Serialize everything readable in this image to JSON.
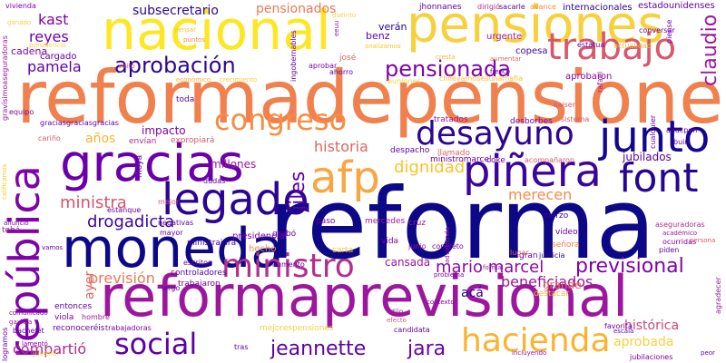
{
  "words": [
    {
      "text": "reforma",
      "color": "#0d0887"
    },
    {
      "text": "reformadepensiones",
      "color": "#f0804d"
    },
    {
      "text": "nacional",
      "color": "#fde725"
    },
    {
      "text": "pensiones",
      "color": "#f7d13d"
    },
    {
      "text": "reformaprevisional",
      "color": "#9c179e"
    },
    {
      "text": "moneda",
      "color": "#0d0887"
    },
    {
      "text": "gracias",
      "color": "#6a00a8"
    },
    {
      "text": "trabajo",
      "color": "#d8576b"
    },
    {
      "text": "república",
      "color": "#7e03a8"
    },
    {
      "text": "piñera",
      "color": "#3b049a"
    },
    {
      "text": "legado",
      "color": "#2a0593"
    },
    {
      "text": "junto",
      "color": "#13068f"
    },
    {
      "text": "afp",
      "color": "#f9a642"
    },
    {
      "text": "font",
      "color": "#240691"
    },
    {
      "text": "desayuno",
      "color": "#2c0594"
    },
    {
      "text": "social",
      "color": "#5c01a6"
    },
    {
      "text": "hacienda",
      "color": "#fbb32f"
    },
    {
      "text": "ministro",
      "color": "#b2308b"
    },
    {
      "text": "congreso",
      "color": "#f68d45"
    },
    {
      "text": "aprobación",
      "color": "#2c0594"
    },
    {
      "text": "pensionada",
      "color": "#7e03a8"
    },
    {
      "text": "claudio",
      "color": "#9c179e"
    },
    {
      "text": "jeannette",
      "color": "#5c01a6"
    },
    {
      "text": "jara",
      "color": "#6a00a8"
    },
    {
      "text": "previsional",
      "color": "#7e03a8"
    },
    {
      "text": "mario marcel",
      "color": "#8b0aa5"
    },
    {
      "text": "beneficiados",
      "color": "#9c179e"
    },
    {
      "text": "jiles",
      "color": "#5c01a6"
    },
    {
      "text": "historia",
      "color": "#e16462"
    },
    {
      "text": "dignidad",
      "color": "#fdc328"
    },
    {
      "text": "merecen",
      "color": "#f58c46"
    },
    {
      "text": "drogadicta",
      "color": "#3b049a"
    },
    {
      "text": "ministra",
      "color": "#d5546e"
    },
    {
      "text": "previsión",
      "color": "#ec7853"
    },
    {
      "text": "pamela",
      "color": "#5c01a6"
    },
    {
      "text": "reyes",
      "color": "#6a00a8"
    },
    {
      "text": "kast",
      "color": "#7e03a8"
    },
    {
      "text": "subsecretario",
      "color": "#2c0594"
    },
    {
      "text": "pensionados",
      "color": "#ec7853"
    },
    {
      "text": "compartió",
      "color": "#b12a90"
    },
    {
      "text": "aprobada",
      "color": "#f7d13d"
    },
    {
      "text": "histórica",
      "color": "#cc4778"
    },
    {
      "text": "años",
      "color": "#fdb42f"
    },
    {
      "text": "ayer",
      "color": "#e16462"
    },
    {
      "text": "acá",
      "color": "#2c0594"
    },
    {
      "text": "impacto",
      "color": "#7e03a8"
    },
    {
      "text": "millones",
      "color": "#9c179e"
    },
    {
      "text": "cansada",
      "color": "#9c179e"
    },
    {
      "text": "grande",
      "color": "#e56b5d"
    },
    {
      "text": "jubilados",
      "color": "#5c01a6"
    },
    {
      "text": "verán",
      "color": "#2c0594"
    },
    {
      "text": "benz",
      "color": "#5c01a6"
    },
    {
      "text": "copesa",
      "color": "#3b049a"
    },
    {
      "text": "urgente",
      "color": "#9c179e"
    },
    {
      "text": "cadena",
      "color": "#7e03a8"
    },
    {
      "text": "cargado",
      "color": "#6a00a8"
    },
    {
      "text": "aprobaron",
      "color": "#8b0aa5"
    },
    {
      "text": "internacionales",
      "color": "#2c0594"
    },
    {
      "text": "estadounidenses",
      "color": "#5c01a6"
    },
    {
      "text": "jhonnanes",
      "color": "#5c01a6"
    },
    {
      "text": "dirigió",
      "color": "#b12a90"
    },
    {
      "text": "sacarle",
      "color": "#5c01a6"
    },
    {
      "text": "avance",
      "color": "#f58c46"
    },
    {
      "text": "conversar",
      "color": "#5c01a6"
    },
    {
      "text": "estatua",
      "color": "#6a00a8"
    },
    {
      "text": "actualidad",
      "color": "#fdb42f"
    },
    {
      "text": "ministromarcel",
      "color": "#6a00a8"
    },
    {
      "text": "chilevamosesunamafia",
      "color": "#fdc328"
    },
    {
      "text": "reuniones",
      "color": "#f7d13d"
    },
    {
      "text": "despacho",
      "color": "#5c01a6"
    },
    {
      "text": "llamado",
      "color": "#e16462"
    },
    {
      "text": "tratados",
      "color": "#9c179e"
    },
    {
      "text": "desborbes",
      "color": "#7e03a8"
    },
    {
      "text": "expropiará",
      "color": "#d8576b"
    },
    {
      "text": "envían",
      "color": "#b12a90"
    },
    {
      "text": "cariño",
      "color": "#d8576b"
    },
    {
      "text": "gravísimoaseguradoras",
      "color": "#9c179e"
    },
    {
      "text": "graciasgraciasgracias",
      "color": "#5c01a6"
    },
    {
      "text": "equipo",
      "color": "#7e03a8"
    },
    {
      "text": "bachelet",
      "color": "#5c01a6"
    },
    {
      "text": "vivienda",
      "color": "#7e03a8"
    },
    {
      "text": "puntos",
      "color": "#f58c46"
    },
    {
      "text": "crecimiento",
      "color": "#f7d13d"
    },
    {
      "text": "económico",
      "color": "#fdb42f"
    },
    {
      "text": "ingobernables",
      "color": "#6a00a8"
    },
    {
      "text": "aprobar",
      "color": "#7e03a8"
    },
    {
      "text": "josé",
      "color": "#e16462"
    },
    {
      "text": "ahorro",
      "color": "#5c01a6"
    },
    {
      "text": "toda",
      "color": "#5c01a6"
    },
    {
      "text": "dudas",
      "color": "#5c01a6"
    },
    {
      "text": "estanque",
      "color": "#6a00a8"
    },
    {
      "text": "ministrajara",
      "color": "#3b049a"
    },
    {
      "text": "presidencial",
      "color": "#7e03a8"
    },
    {
      "text": "grabó",
      "color": "#5c01a6"
    },
    {
      "text": "paso",
      "color": "#6a00a8"
    },
    {
      "text": "mercedes",
      "color": "#9c179e"
    },
    {
      "text": "cruz",
      "color": "#9c179e"
    },
    {
      "text": "problema",
      "color": "#7e03a8"
    },
    {
      "text": "marzo",
      "color": "#3b049a"
    },
    {
      "text": "acompañaron",
      "color": "#d8576b"
    },
    {
      "text": "coke",
      "color": "#6a00a8"
    },
    {
      "text": "buin",
      "color": "#6a00a8"
    },
    {
      "text": "anacpen",
      "color": "#5c01a6"
    },
    {
      "text": "aseguradoras",
      "color": "#b12a90"
    },
    {
      "text": "académico",
      "color": "#9c179e"
    },
    {
      "text": "ocurridas",
      "color": "#7e03a8"
    },
    {
      "text": "piden",
      "color": "#5c01a6"
    },
    {
      "text": "persona",
      "color": "#d8576b"
    },
    {
      "text": "gran",
      "color": "#5c01a6"
    },
    {
      "text": "justicia",
      "color": "#2c0594"
    },
    {
      "text": "concreto",
      "color": "#7e03a8"
    },
    {
      "text": "advirtiendo",
      "color": "#9c179e"
    },
    {
      "text": "video",
      "color": "#6a00a8"
    },
    {
      "text": "señora",
      "color": "#f0804d"
    },
    {
      "text": "vida",
      "color": "#7e03a8"
    },
    {
      "text": "junio",
      "color": "#9c179e"
    },
    {
      "text": "carta",
      "color": "#fdc328"
    },
    {
      "text": "contexto",
      "color": "#7e03a8"
    },
    {
      "text": "controladores",
      "color": "#5c01a6"
    },
    {
      "text": "trabajaron",
      "color": "#6a00a8"
    },
    {
      "text": "mejorespensiones",
      "color": "#f7d13d"
    },
    {
      "text": "candidata",
      "color": "#5c01a6"
    },
    {
      "text": "entonces",
      "color": "#5c01a6"
    },
    {
      "text": "viola",
      "color": "#7e03a8"
    },
    {
      "text": "reconoceréis",
      "color": "#6a00a8"
    },
    {
      "text": "trabajadoras",
      "color": "#7e03a8"
    },
    {
      "text": "hombre",
      "color": "#9c179e"
    },
    {
      "text": "favorita",
      "color": "#6a00a8"
    },
    {
      "text": "jubilaciones",
      "color": "#7e03a8"
    },
    {
      "text": "incluyendo",
      "color": "#9c179e"
    },
    {
      "text": "efecto",
      "color": "#d8576b"
    },
    {
      "text": "dijo",
      "color": "#9c179e"
    },
    {
      "text": "tras",
      "color": "#5c01a6"
    },
    {
      "text": "juvenil",
      "color": "#f7d13d"
    },
    {
      "text": "lamentó",
      "color": "#7e03a8"
    },
    {
      "text": "logramos",
      "color": "#6a00a8"
    },
    {
      "text": "comunicado",
      "color": "#7e03a8"
    },
    {
      "text": "gaxiola",
      "color": "#9c179e"
    },
    {
      "text": "mejor",
      "color": "#d8576b"
    },
    {
      "text": "mayor",
      "color": "#6a00a8"
    },
    {
      "text": "negativas",
      "color": "#5c01a6"
    },
    {
      "text": "escritor",
      "color": "#7e03a8"
    },
    {
      "text": "hecho",
      "color": "#f58c46"
    },
    {
      "text": "aumento",
      "color": "#6a00a8"
    },
    {
      "text": "largo",
      "color": "#5c01a6"
    },
    {
      "text": "moya",
      "color": "#6a00a8"
    },
    {
      "text": "tohá",
      "color": "#9c179e"
    },
    {
      "text": "anuncio",
      "color": "#7e03a8"
    },
    {
      "text": "vamos",
      "color": "#6a00a8"
    },
    {
      "text": "destacar",
      "color": "#fdb42f"
    },
    {
      "text": "lugar",
      "color": "#e16462"
    },
    {
      "text": "kaiser",
      "color": "#d8576b"
    },
    {
      "text": "rafael",
      "color": "#9c179e"
    },
    {
      "text": "cualquier",
      "color": "#6a00a8"
    },
    {
      "text": "piense",
      "color": "#7e03a8"
    },
    {
      "text": "sistema",
      "color": "#d8576b"
    },
    {
      "text": "escala",
      "color": "#6a00a8"
    },
    {
      "text": "agradecer",
      "color": "#9c179e"
    },
    {
      "text": "peor",
      "color": "#5c01a6"
    },
    {
      "text": "distinto",
      "color": "#f7d13d"
    },
    {
      "text": "eeuu",
      "color": "#9c179e"
    },
    {
      "text": "cresta",
      "color": "#fdb42f"
    },
    {
      "text": "aumentar",
      "color": "#e16462"
    },
    {
      "text": "presidencia",
      "color": "#f7d13d"
    },
    {
      "text": "pensar",
      "color": "#fdc328"
    },
    {
      "text": "analizamos",
      "color": "#fdc328"
    },
    {
      "text": "frenco",
      "color": "#6a00a8"
    },
    {
      "text": "visitó",
      "color": "#d8576b"
    },
    {
      "text": "calificamos",
      "color": "#fdc328"
    },
    {
      "text": "formal",
      "color": "#9c179e"
    },
    {
      "text": "ganado",
      "color": "#f7d13d"
    }
  ]
}
